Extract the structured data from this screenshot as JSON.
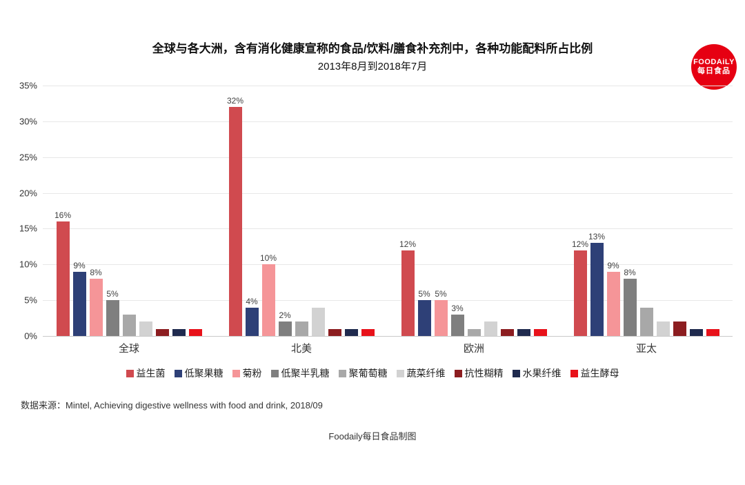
{
  "logo": {
    "line1": "FOODAiLY",
    "line2": "每日食品",
    "bg_color": "#e60012"
  },
  "header": {
    "title": "全球与各大洲，含有消化健康宣称的食品/饮料/膳食补充剂中，各种功能配料所占比例",
    "subtitle": "2013年8月到2018年7月"
  },
  "chart_data": {
    "type": "bar",
    "categories": [
      "全球",
      "北美",
      "欧洲",
      "亚太"
    ],
    "series": [
      {
        "name": "益生菌",
        "color": "#d04a4f",
        "values": [
          16,
          32,
          12,
          12
        ]
      },
      {
        "name": "低聚果糖",
        "color": "#2e4077",
        "values": [
          9,
          4,
          5,
          13
        ]
      },
      {
        "name": "菊粉",
        "color": "#f59598",
        "values": [
          8,
          10,
          5,
          9
        ]
      },
      {
        "name": "低聚半乳糖",
        "color": "#7f7f7f",
        "values": [
          5,
          2,
          3,
          8
        ]
      },
      {
        "name": "聚葡萄糖",
        "color": "#a8a8a8",
        "values": [
          3,
          2,
          1,
          4
        ]
      },
      {
        "name": "蔬菜纤维",
        "color": "#d2d2d2",
        "values": [
          2,
          4,
          2,
          2
        ]
      },
      {
        "name": "抗性糊精",
        "color": "#8c1d20",
        "values": [
          1,
          1,
          1,
          2
        ]
      },
      {
        "name": "水果纤维",
        "color": "#1f2a4e",
        "values": [
          1,
          1,
          1,
          1
        ]
      },
      {
        "name": "益生酵母",
        "color": "#e8121a",
        "values": [
          1,
          1,
          1,
          1
        ]
      }
    ],
    "labeled_series_count": 4,
    "label_format": "{v}%",
    "ylim": [
      0,
      35
    ],
    "ytick_step": 5,
    "yticks": [
      "0%",
      "5%",
      "10%",
      "15%",
      "20%",
      "25%",
      "30%",
      "35%"
    ],
    "grid": true,
    "legend_position": "bottom"
  },
  "source": {
    "text": "数据来源：Mintel, Achieving digestive wellness with food and drink, 2018/09"
  },
  "footer": {
    "text": "Foodaily每日食品制图"
  }
}
